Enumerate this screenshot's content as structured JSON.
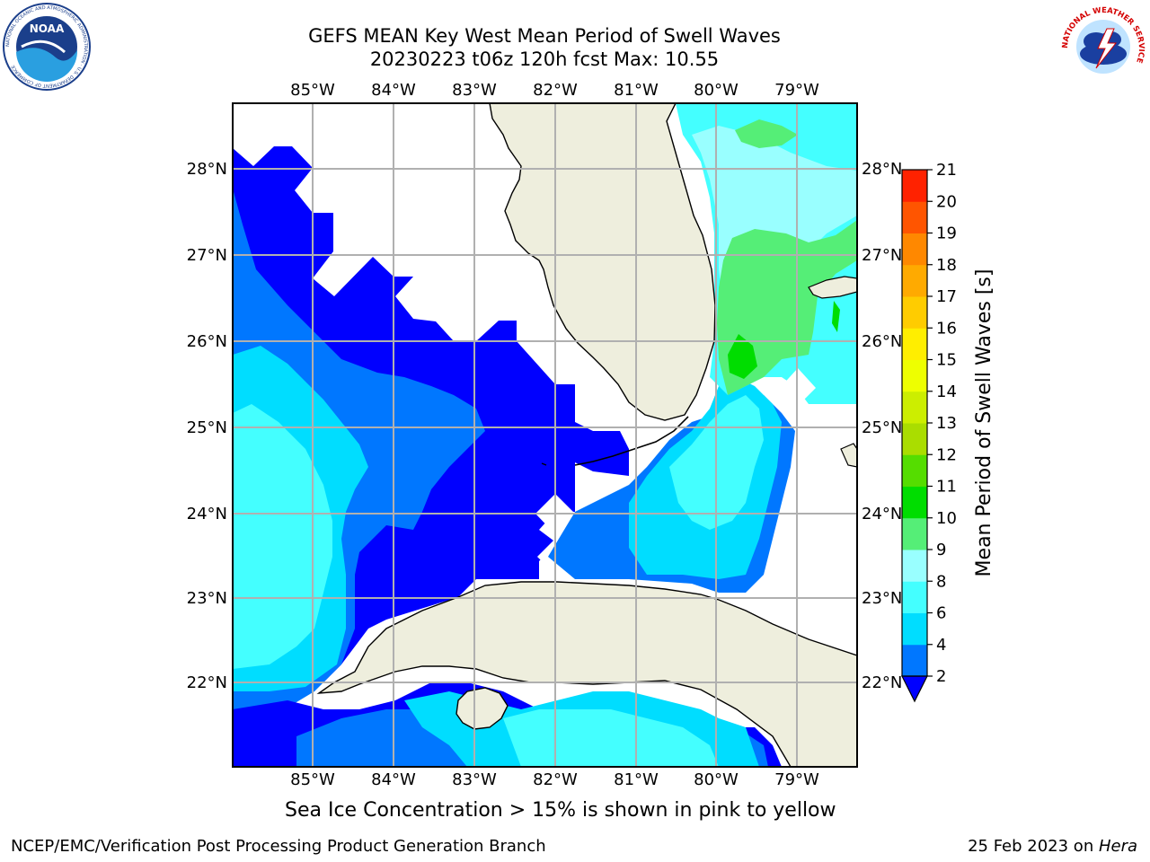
{
  "header": {
    "title_line1": "GEFS MEAN Key West Mean Period of Swell Waves",
    "title_line2": "20230223 t06z 120h fcst   Max: 10.55"
  },
  "logos": {
    "noaa_text": "NOAA",
    "noaa_ring": "NATIONAL OCEANIC AND ATMOSPHERIC ADMINISTRATION · U.S. DEPARTMENT OF COMMERCE",
    "nws_ring": "NATIONAL WEATHER SERVICE"
  },
  "map": {
    "lon_labels": [
      "85°W",
      "84°W",
      "83°W",
      "82°W",
      "81°W",
      "80°W",
      "79°W"
    ],
    "lat_labels": [
      "28°N",
      "27°N",
      "26°N",
      "25°N",
      "24°N",
      "23°N",
      "22°N"
    ],
    "land_color": "#eeeedd",
    "grid_color": "#b0b0b0"
  },
  "colorbar": {
    "label": "Mean Period of Swell Waves [s]",
    "ticks": [
      "2",
      "4",
      "6",
      "8",
      "9",
      "10",
      "11",
      "12",
      "13",
      "14",
      "15",
      "16",
      "17",
      "18",
      "19",
      "20",
      "21"
    ],
    "colors": [
      "#0077ff",
      "#00ddff",
      "#44ffff",
      "#99ffff",
      "#55ee77",
      "#00dd00",
      "#55dd00",
      "#aadd00",
      "#ccee00",
      "#eeff00",
      "#ffee00",
      "#ffcc00",
      "#ffaa00",
      "#ff8800",
      "#ff5500",
      "#ff2200"
    ],
    "under_color": "#0000ff"
  },
  "caption": "Sea Ice Concentration > 15% is shown in pink to yellow",
  "footer": {
    "left": "NCEP/EMC/Verification Post Processing Product Generation Branch",
    "right_prefix": "25 Feb 2023 on ",
    "right_host": "Hera"
  }
}
